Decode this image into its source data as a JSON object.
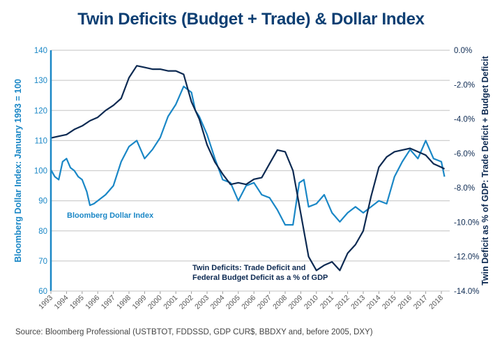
{
  "chart_data": {
    "type": "line",
    "title": "Twin Deficits (Budget + Trade) & Dollar Index",
    "source": "Source: Bloomberg Professional (USTBTOT, FDDSSD, GDP CUR$, BBDXY and, before 2005, DXY)",
    "xlabel": "",
    "xlim": [
      1993,
      2018
    ],
    "x_ticks": [
      "1993",
      "1994",
      "1995",
      "1996",
      "1997",
      "1998",
      "1999",
      "2000",
      "2001",
      "2002",
      "2003",
      "2004",
      "2005",
      "2006",
      "2007",
      "2008",
      "2009",
      "2010",
      "2011",
      "2012",
      "2013",
      "2014",
      "2015",
      "2016",
      "2017",
      "2018"
    ],
    "y_left": {
      "label": "Bloomberg Dollar Index: January 1993 = 100",
      "ylim": [
        60,
        140
      ],
      "ticks": [
        "60",
        "70",
        "80",
        "90",
        "100",
        "110",
        "120",
        "130",
        "140"
      ]
    },
    "y_right": {
      "label": "Twin Deficit as % of GDP: Trade Deficit + Budget Deficit",
      "ylim": [
        -14,
        0
      ],
      "ticks": [
        "-14.0%",
        "-12.0%",
        "-10.0%",
        "-8.0%",
        "-6.0%",
        "-4.0%",
        "-2.0%",
        "0.0%"
      ]
    },
    "grid": true,
    "series": [
      {
        "name": "Bloomberg Dollar Index",
        "axis": "left",
        "color": "#1a87c6",
        "x": [
          1993.0,
          1993.25,
          1993.5,
          1993.75,
          1994.0,
          1994.25,
          1994.5,
          1994.75,
          1995.0,
          1995.3,
          1995.5,
          1995.75,
          1996.0,
          1996.5,
          1997.0,
          1997.5,
          1998.0,
          1998.5,
          1999.0,
          1999.5,
          2000.0,
          2000.5,
          2001.0,
          2001.5,
          2002.0,
          2002.25,
          2002.5,
          2003.0,
          2003.5,
          2004.0,
          2004.5,
          2005.0,
          2005.5,
          2006.0,
          2006.5,
          2007.0,
          2007.5,
          2008.0,
          2008.5,
          2008.9,
          2009.2,
          2009.5,
          2010.0,
          2010.5,
          2011.0,
          2011.5,
          2012.0,
          2012.5,
          2013.0,
          2013.5,
          2014.0,
          2014.5,
          2015.0,
          2015.5,
          2016.0,
          2016.5,
          2017.0,
          2017.5,
          2018.0,
          2018.2
        ],
        "values": [
          100.3,
          98,
          97,
          103,
          104,
          101,
          100,
          98,
          97,
          93,
          88.5,
          89,
          90,
          92,
          95,
          103,
          108,
          110,
          104,
          107,
          111,
          118,
          122,
          128,
          126,
          120,
          118,
          112,
          104,
          97,
          96,
          90,
          95,
          96,
          92,
          91,
          87,
          82,
          82,
          96,
          97,
          88,
          89,
          92,
          86,
          83,
          86,
          88,
          86,
          88,
          90,
          89,
          98,
          103,
          107,
          104,
          110,
          104,
          103,
          98
        ]
      },
      {
        "name": "Twin Deficits: Trade Deficit and Federal Budget Deficit as a % of GDP",
        "axis": "right",
        "color": "#0d2a52",
        "x": [
          1993.0,
          1993.5,
          1994.0,
          1994.5,
          1995.0,
          1995.5,
          1996.0,
          1996.5,
          1997.0,
          1997.5,
          1998.0,
          1998.5,
          1999.0,
          1999.5,
          2000.0,
          2000.5,
          2001.0,
          2001.5,
          2002.0,
          2002.5,
          2003.0,
          2003.5,
          2004.0,
          2004.5,
          2005.0,
          2005.5,
          2006.0,
          2006.5,
          2007.0,
          2007.5,
          2008.0,
          2008.5,
          2009.0,
          2009.5,
          2010.0,
          2010.5,
          2011.0,
          2011.5,
          2012.0,
          2012.5,
          2013.0,
          2013.5,
          2014.0,
          2014.5,
          2015.0,
          2015.5,
          2016.0,
          2016.5,
          2017.0,
          2017.5,
          2018.0,
          2018.2
        ],
        "values": [
          -5.1,
          -5.0,
          -4.9,
          -4.6,
          -4.4,
          -4.1,
          -3.9,
          -3.5,
          -3.2,
          -2.8,
          -1.6,
          -0.9,
          -1.0,
          -1.1,
          -1.1,
          -1.2,
          -1.2,
          -1.4,
          -3.0,
          -4.0,
          -5.5,
          -6.5,
          -7.2,
          -7.8,
          -7.7,
          -7.8,
          -7.5,
          -7.4,
          -6.6,
          -5.8,
          -5.9,
          -7.0,
          -9.5,
          -12.0,
          -12.8,
          -12.5,
          -12.3,
          -12.8,
          -11.8,
          -11.3,
          -10.5,
          -8.5,
          -6.8,
          -6.2,
          -5.9,
          -5.8,
          -5.7,
          -5.9,
          -6.1,
          -6.6,
          -6.8,
          -6.9
        ]
      }
    ],
    "annotations": [
      {
        "text": "Bloomberg Dollar Index",
        "series": 0
      },
      {
        "text": "Twin Deficits: Trade Deficit and",
        "series": 1
      },
      {
        "text": "Federal Budget Deficit as a % of GDP",
        "series": 1
      }
    ],
    "legend": "inline-annotations"
  }
}
